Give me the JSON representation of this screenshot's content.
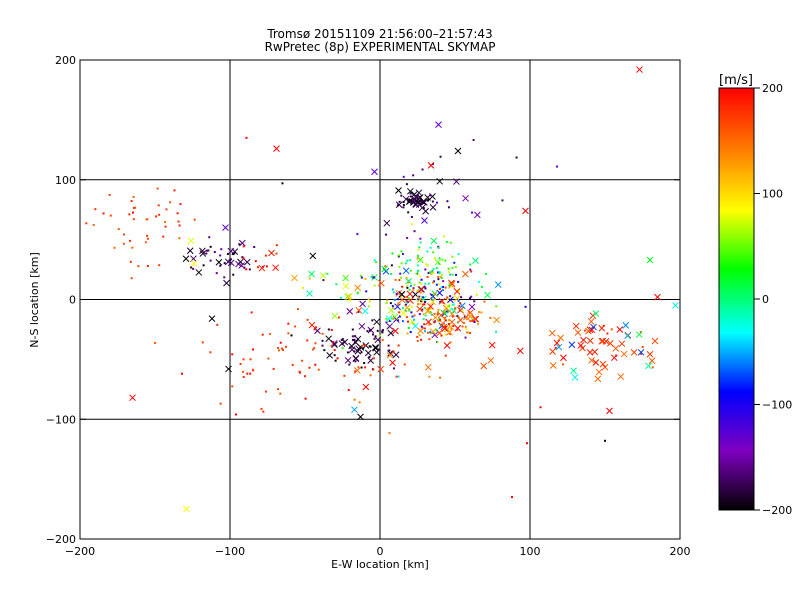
{
  "chart_data": {
    "type": "scatter",
    "title": "Tromsø 20151109 21:56:00–21:57:43",
    "subtitle": "RwPretec (8p) EXPERIMENTAL SKYMAP",
    "xlabel": "E-W location [km]",
    "ylabel": "N-S location [km]",
    "xlim": [
      -200,
      200
    ],
    "ylim": [
      -200,
      200
    ],
    "x_ticks": [
      "−200",
      "−100",
      "0",
      "100",
      "200"
    ],
    "y_ticks": [
      "−200",
      "−100",
      "0",
      "100",
      "200"
    ],
    "grid": true,
    "marker_types": [
      "dot",
      "x"
    ],
    "colorbar": {
      "label": "[m/s]",
      "range": [
        -200,
        200
      ],
      "ticks": [
        "200",
        "100",
        "0",
        "−100",
        "−200"
      ],
      "colormap": [
        "#000000",
        "#7f00bf",
        "#0000ff",
        "#00ffff",
        "#00ff00",
        "#ffff00",
        "#ff7f00",
        "#ff0000"
      ]
    },
    "clusters": [
      {
        "x": -160,
        "y": 65,
        "sx": 18,
        "sy": 18,
        "vmin": 150,
        "vmax": 200,
        "n": 45,
        "xfrac": 0
      },
      {
        "x": -105,
        "y": 32,
        "sx": 14,
        "sy": 8,
        "vmin": -200,
        "vmax": -150,
        "n": 45,
        "xfrac": 0.35
      },
      {
        "x": -80,
        "y": 35,
        "sx": 10,
        "sy": 8,
        "vmin": 150,
        "vmax": 200,
        "n": 12,
        "xfrac": 0.5
      },
      {
        "x": 25,
        "y": 82,
        "sx": 6,
        "sy": 4,
        "vmin": -200,
        "vmax": -170,
        "n": 55,
        "xfrac": 0.4
      },
      {
        "x": 40,
        "y": 75,
        "sx": 25,
        "sy": 25,
        "vmin": -200,
        "vmax": -120,
        "n": 35,
        "xfrac": 0.3
      },
      {
        "x": 25,
        "y": 0,
        "sx": 22,
        "sy": 16,
        "vmin": -200,
        "vmax": 200,
        "n": 260,
        "xfrac": 0.25
      },
      {
        "x": 45,
        "y": -18,
        "sx": 14,
        "sy": 7,
        "vmin": 120,
        "vmax": 200,
        "n": 70,
        "xfrac": 0.3
      },
      {
        "x": -15,
        "y": -38,
        "sx": 12,
        "sy": 9,
        "vmin": -200,
        "vmax": -160,
        "n": 70,
        "xfrac": 0.4
      },
      {
        "x": -60,
        "y": -45,
        "sx": 30,
        "sy": 22,
        "vmin": 160,
        "vmax": 200,
        "n": 70,
        "xfrac": 0.05
      },
      {
        "x": 20,
        "y": -55,
        "sx": 30,
        "sy": 18,
        "vmin": 140,
        "vmax": 200,
        "n": 25,
        "xfrac": 0.25
      },
      {
        "x": 150,
        "y": -40,
        "sx": 20,
        "sy": 12,
        "vmin": 150,
        "vmax": 200,
        "n": 55,
        "xfrac": 0.7
      },
      {
        "x": 150,
        "y": -35,
        "sx": 25,
        "sy": 15,
        "vmin": -80,
        "vmax": 20,
        "n": 10,
        "xfrac": 0.9
      },
      {
        "x": 30,
        "y": 30,
        "sx": 15,
        "sy": 12,
        "vmin": -30,
        "vmax": 90,
        "n": 60,
        "xfrac": 0.1
      },
      {
        "x": -30,
        "y": 10,
        "sx": 15,
        "sy": 10,
        "vmin": 0,
        "vmax": 120,
        "n": 12,
        "xfrac": 0.6
      }
    ],
    "points": [
      {
        "x": 173,
        "y": 192,
        "v": 200,
        "m": "x"
      },
      {
        "x": -69,
        "y": 126,
        "v": 200,
        "m": "x"
      },
      {
        "x": -89,
        "y": 135,
        "v": 200,
        "m": "dot"
      },
      {
        "x": 39,
        "y": 146,
        "v": -130,
        "m": "x"
      },
      {
        "x": 52,
        "y": 124,
        "v": -200,
        "m": "x"
      },
      {
        "x": 34,
        "y": 112,
        "v": 200,
        "m": "x"
      },
      {
        "x": 118,
        "y": 111,
        "v": -130,
        "m": "dot"
      },
      {
        "x": -65,
        "y": 97,
        "v": -200,
        "m": "dot"
      },
      {
        "x": 97,
        "y": 74,
        "v": 200,
        "m": "x"
      },
      {
        "x": -103,
        "y": 60,
        "v": -130,
        "m": "x"
      },
      {
        "x": -126,
        "y": 49,
        "v": 80,
        "m": "x"
      },
      {
        "x": -124,
        "y": 30,
        "v": 90,
        "m": "x"
      },
      {
        "x": 180,
        "y": 33,
        "v": 20,
        "m": "x"
      },
      {
        "x": -38,
        "y": 20,
        "v": 70,
        "m": "x"
      },
      {
        "x": -57,
        "y": 18,
        "v": 130,
        "m": "x"
      },
      {
        "x": -47,
        "y": 5,
        "v": -10,
        "m": "x"
      },
      {
        "x": 185,
        "y": 2,
        "v": 200,
        "m": "x"
      },
      {
        "x": 197,
        "y": -5,
        "v": -20,
        "m": "x"
      },
      {
        "x": -112,
        "y": -16,
        "v": -200,
        "m": "x"
      },
      {
        "x": -59,
        "y": -30,
        "v": -200,
        "m": "dot"
      },
      {
        "x": -101,
        "y": -58,
        "v": -200,
        "m": "x"
      },
      {
        "x": -132,
        "y": -62,
        "v": 200,
        "m": "dot"
      },
      {
        "x": -165,
        "y": -82,
        "v": 200,
        "m": "x"
      },
      {
        "x": -96,
        "y": -96,
        "v": 200,
        "m": "dot"
      },
      {
        "x": -17,
        "y": -92,
        "v": -50,
        "m": "x"
      },
      {
        "x": -13,
        "y": -98,
        "v": -200,
        "m": "x"
      },
      {
        "x": 130,
        "y": -65,
        "v": -30,
        "m": "x"
      },
      {
        "x": 107,
        "y": -90,
        "v": 200,
        "m": "dot"
      },
      {
        "x": 153,
        "y": -93,
        "v": 200,
        "m": "x"
      },
      {
        "x": 150,
        "y": -118,
        "v": -200,
        "m": "dot"
      },
      {
        "x": 88,
        "y": -165,
        "v": 200,
        "m": "dot"
      },
      {
        "x": -129,
        "y": -175,
        "v": 85,
        "m": "x"
      },
      {
        "x": 98,
        "y": -120,
        "v": 200,
        "m": "dot"
      }
    ]
  }
}
